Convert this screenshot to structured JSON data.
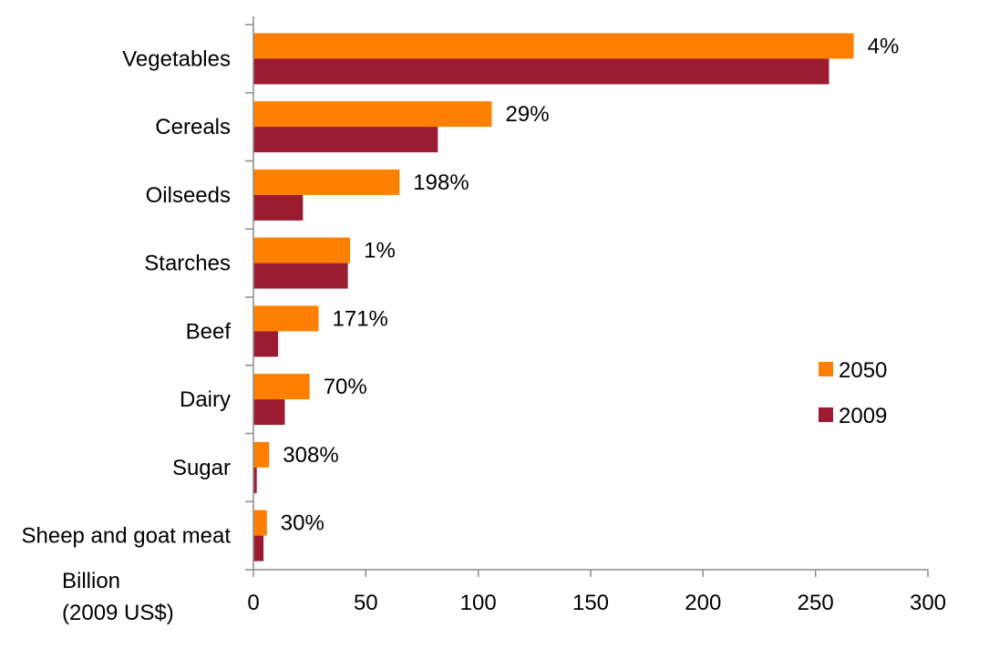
{
  "chart_data": {
    "type": "bar",
    "orientation": "horizontal",
    "categories": [
      "Vegetables",
      "Cereals",
      "Oilseeds",
      "Starches",
      "Beef",
      "Dairy",
      "Sugar",
      "Sheep and goat meat"
    ],
    "series": [
      {
        "name": "2050",
        "color": "#FF8000",
        "values": [
          267,
          106,
          65,
          43,
          29,
          25,
          7,
          6
        ]
      },
      {
        "name": "2009",
        "color": "#9B1B30",
        "values": [
          256,
          82,
          22,
          42,
          11,
          14,
          1.5,
          4.5
        ]
      }
    ],
    "data_labels": [
      "4%",
      "29%",
      "198%",
      "1%",
      "171%",
      "70%",
      "308%",
      "30%"
    ],
    "xlabel": [
      "Billion",
      "(2009 US$)"
    ],
    "xlim": [
      0,
      300
    ],
    "xticks": [
      0,
      50,
      100,
      150,
      200,
      250,
      300
    ],
    "grid": false,
    "legend_position": "right"
  }
}
